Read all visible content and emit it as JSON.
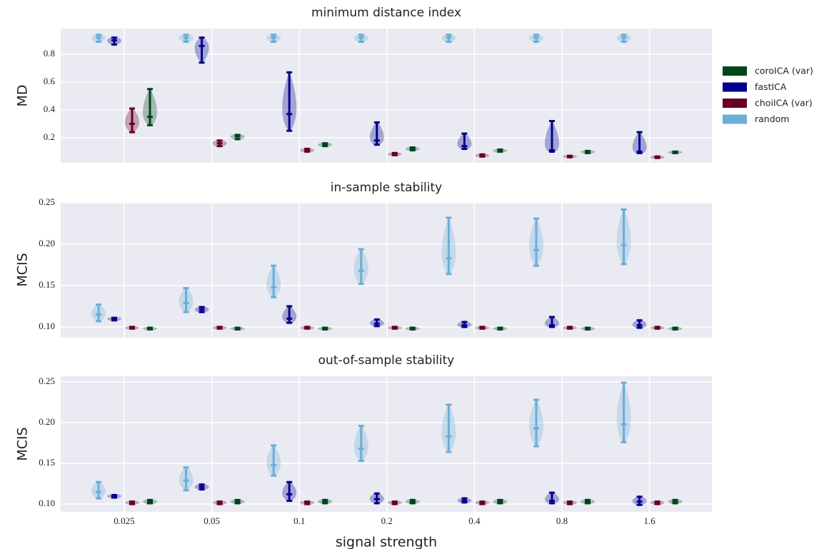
{
  "chart_data": [
    {
      "type": "violin",
      "title": "minimum distance index",
      "ylabel": "MD",
      "ylim": [
        0.02,
        0.985
      ],
      "yticks": [
        0.2,
        0.4,
        0.6,
        0.8
      ],
      "grid": true,
      "legend": "outside right",
      "series": [
        {
          "name": "coroICA (var)",
          "color": "#00441b",
          "values": [
            0.35,
            0.21,
            0.15,
            0.12,
            0.105,
            0.1,
            0.095
          ],
          "min": [
            0.29,
            0.19,
            0.14,
            0.11,
            0.1,
            0.09,
            0.09
          ],
          "max": [
            0.55,
            0.22,
            0.16,
            0.13,
            0.115,
            0.105,
            0.1
          ]
        },
        {
          "name": "fastICA",
          "color": "#00008b",
          "values": [
            0.9,
            0.86,
            0.37,
            0.18,
            0.14,
            0.11,
            0.1
          ],
          "min": [
            0.87,
            0.74,
            0.25,
            0.15,
            0.12,
            0.1,
            0.09
          ],
          "max": [
            0.92,
            0.92,
            0.67,
            0.31,
            0.23,
            0.32,
            0.24
          ]
        },
        {
          "name": "choiICA (var)",
          "color": "#67001f",
          "values": [
            0.3,
            0.16,
            0.11,
            0.08,
            0.07,
            0.065,
            0.06
          ],
          "min": [
            0.24,
            0.14,
            0.1,
            0.075,
            0.065,
            0.06,
            0.055
          ],
          "max": [
            0.41,
            0.18,
            0.12,
            0.09,
            0.08,
            0.07,
            0.065
          ]
        },
        {
          "name": "random",
          "color": "#6baed6",
          "values": [
            0.92,
            0.92,
            0.92,
            0.92,
            0.92,
            0.92,
            0.92
          ],
          "min": [
            0.89,
            0.89,
            0.89,
            0.89,
            0.89,
            0.89,
            0.89
          ],
          "max": [
            0.94,
            0.94,
            0.94,
            0.94,
            0.94,
            0.94,
            0.94
          ]
        }
      ]
    },
    {
      "type": "violin",
      "title": "in-sample stability",
      "ylabel": "MCIS",
      "ylim": [
        0.087,
        0.251
      ],
      "yticks": [
        {
          "value": 0.1,
          "label": "0.10"
        },
        {
          "value": 0.15,
          "label": "0.15"
        },
        {
          "value": 0.2,
          "label": "0.20"
        },
        {
          "value": 0.25,
          "label": "0.25"
        }
      ],
      "grid": true,
      "series": [
        {
          "color": "#00441b",
          "values": [
            0.098,
            0.098,
            0.098,
            0.098,
            0.098,
            0.098,
            0.098
          ],
          "min": [
            0.097,
            0.097,
            0.097,
            0.097,
            0.097,
            0.097,
            0.097
          ],
          "max": [
            0.099,
            0.099,
            0.099,
            0.099,
            0.099,
            0.099,
            0.099
          ]
        },
        {
          "color": "#00008b",
          "values": [
            0.11,
            0.121,
            0.11,
            0.104,
            0.102,
            0.102,
            0.102
          ],
          "min": [
            0.108,
            0.118,
            0.105,
            0.101,
            0.1,
            0.1,
            0.099
          ],
          "max": [
            0.111,
            0.124,
            0.125,
            0.109,
            0.106,
            0.112,
            0.108
          ]
        },
        {
          "color": "#67001f",
          "values": [
            0.099,
            0.099,
            0.099,
            0.099,
            0.099,
            0.099,
            0.099
          ],
          "min": [
            0.098,
            0.098,
            0.098,
            0.098,
            0.098,
            0.098,
            0.098
          ],
          "max": [
            0.1,
            0.1,
            0.1,
            0.1,
            0.1,
            0.1,
            0.1
          ]
        },
        {
          "color": "#6baed6",
          "values": [
            0.115,
            0.129,
            0.148,
            0.168,
            0.183,
            0.193,
            0.199
          ],
          "min": [
            0.107,
            0.118,
            0.136,
            0.152,
            0.164,
            0.174,
            0.176
          ],
          "max": [
            0.127,
            0.147,
            0.174,
            0.194,
            0.232,
            0.231,
            0.242
          ]
        }
      ]
    },
    {
      "type": "violin",
      "title": "out-of-sample stability",
      "ylabel": "MCIS",
      "xlabel": "signal strength",
      "categories": [
        "0.025",
        "0.05",
        "0.1",
        "0.2",
        "0.4",
        "0.8",
        "1.6"
      ],
      "ylim": [
        0.0904,
        0.257
      ],
      "yticks": [
        {
          "value": 0.1,
          "label": "0.10"
        },
        {
          "value": 0.15,
          "label": "0.15"
        },
        {
          "value": 0.2,
          "label": "0.20"
        },
        {
          "value": 0.25,
          "label": "0.25"
        }
      ],
      "grid": true,
      "series": [
        {
          "color": "#00441b",
          "values": [
            0.103,
            0.103,
            0.103,
            0.103,
            0.103,
            0.103,
            0.103
          ],
          "min": [
            0.101,
            0.101,
            0.101,
            0.101,
            0.101,
            0.101,
            0.101
          ],
          "max": [
            0.105,
            0.105,
            0.105,
            0.105,
            0.105,
            0.105,
            0.105
          ]
        },
        {
          "color": "#00008b",
          "values": [
            0.11,
            0.121,
            0.112,
            0.106,
            0.104,
            0.104,
            0.103
          ],
          "min": [
            0.108,
            0.118,
            0.104,
            0.101,
            0.102,
            0.101,
            0.099
          ],
          "max": [
            0.111,
            0.124,
            0.127,
            0.113,
            0.107,
            0.114,
            0.109
          ]
        },
        {
          "color": "#67001f",
          "values": [
            0.102,
            0.102,
            0.102,
            0.102,
            0.102,
            0.102,
            0.102
          ],
          "min": [
            0.1,
            0.1,
            0.1,
            0.1,
            0.1,
            0.1,
            0.1
          ],
          "max": [
            0.103,
            0.103,
            0.103,
            0.103,
            0.103,
            0.103,
            0.103
          ]
        },
        {
          "color": "#6baed6",
          "values": [
            0.115,
            0.129,
            0.148,
            0.168,
            0.183,
            0.193,
            0.198
          ],
          "min": [
            0.107,
            0.117,
            0.135,
            0.153,
            0.164,
            0.171,
            0.176
          ],
          "max": [
            0.127,
            0.145,
            0.172,
            0.196,
            0.222,
            0.228,
            0.249
          ]
        }
      ]
    }
  ]
}
